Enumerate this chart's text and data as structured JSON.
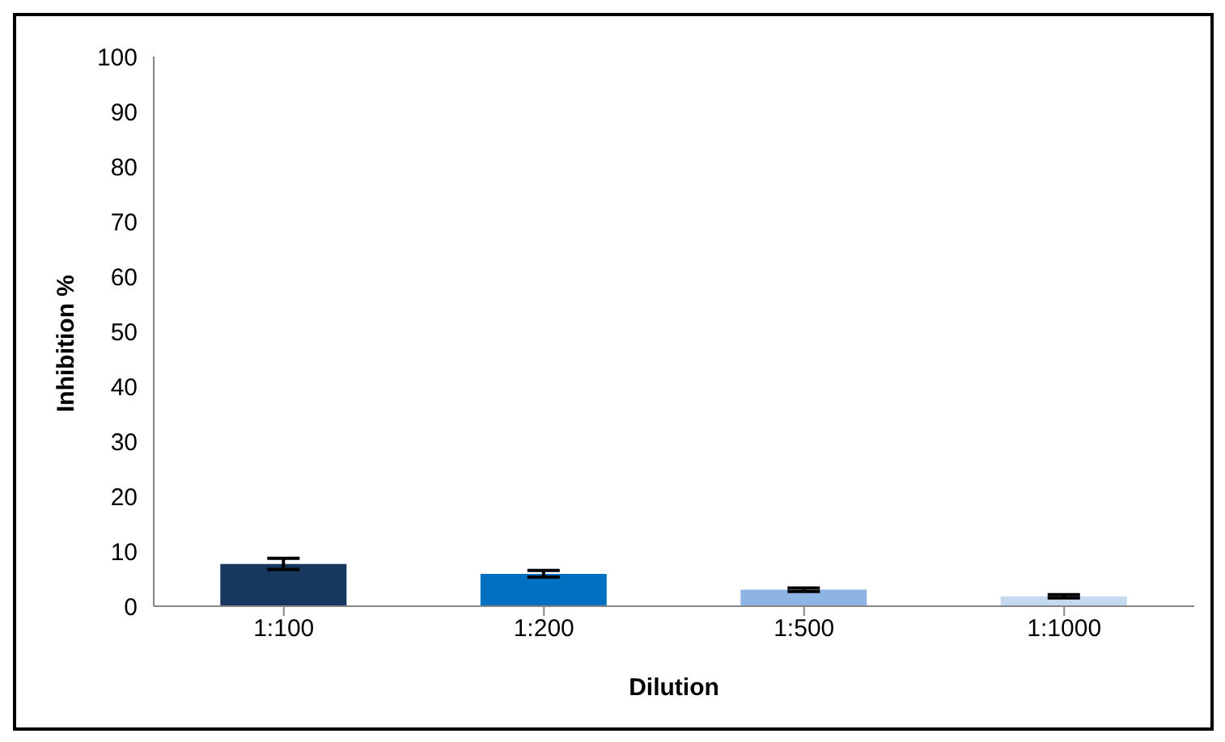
{
  "chart_data": {
    "type": "bar",
    "xlabel": "Dilution",
    "ylabel": "Inhibition %",
    "categories": [
      "1:100",
      "1:200",
      "1:500",
      "1:1000"
    ],
    "values": [
      7.7,
      5.9,
      3.0,
      1.8
    ],
    "colors": [
      "#17375e",
      "#0070c0",
      "#8db4e2",
      "#c5d9f1"
    ],
    "errors": [
      1.0,
      0.6,
      0.3,
      0.3
    ],
    "ylim": [
      0,
      100
    ],
    "yticks": [
      0,
      10,
      20,
      30,
      40,
      50,
      60,
      70,
      80,
      90,
      100
    ],
    "grid": false,
    "legend": false
  }
}
